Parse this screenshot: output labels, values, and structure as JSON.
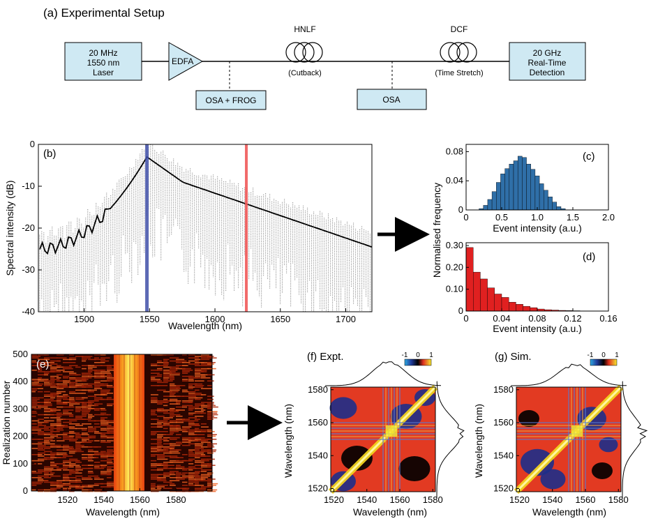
{
  "setup": {
    "title": "(a) Experimental Setup",
    "laser": [
      "20 MHz",
      "1550 nm",
      "Laser"
    ],
    "edfa": "EDFA",
    "hnlf": "HNLF",
    "cutback": "(Cutback)",
    "dcf": "DCF",
    "time_stretch": "(Time Stretch)",
    "detection": [
      "20 GHz",
      "Real-Time",
      "Detection"
    ],
    "osa_frog": "OSA + FROG",
    "osa": "OSA",
    "colors": {
      "box_fill": "#cfe9f3",
      "line": "#000000"
    }
  },
  "panel_b": {
    "label": "(b)",
    "xlabel": "Wavelength (nm)",
    "ylabel": "Spectral intensity (dB)",
    "xticks": [
      1500,
      1550,
      1600,
      1650,
      1700
    ],
    "yticks": [
      0,
      -10,
      -20,
      -30,
      -40
    ],
    "xlim": [
      1465,
      1720
    ],
    "ylim": [
      -40,
      0
    ],
    "blue_marker_nm": 1548,
    "red_marker_nm": 1624,
    "colors": {
      "blue": "#3f4fa8",
      "red": "#f05a5a",
      "mean": "#000000"
    }
  },
  "arrow_bc": {
    "name": "arrow"
  },
  "panel_c": {
    "label": "(c)",
    "xlabel": "Event intensity (a.u.)",
    "xticks": [
      "0",
      "0.5",
      "1.0",
      "1.5",
      "2.0"
    ],
    "yticks": [
      "0",
      "0.04",
      "0.08"
    ],
    "color": "#2f6fa8"
  },
  "panel_d": {
    "label": "(d)",
    "xlabel": "Event intensity (a.u.)",
    "xticks": [
      "0",
      "0.04",
      "0.08",
      "0.12",
      "0.16"
    ],
    "yticks": [
      "0",
      "0.10",
      "0.20",
      "0.30"
    ],
    "color": "#e02020"
  },
  "shared_ylabel_cd": "Normalised frequency",
  "panel_e": {
    "label": "(e)",
    "xlabel": "Wavelength (nm)",
    "ylabel": "Realization number",
    "xticks": [
      "1520",
      "1540",
      "1560",
      "1580"
    ],
    "yticks": [
      "0",
      "100",
      "200",
      "300",
      "400",
      "500"
    ]
  },
  "panel_f": {
    "label": "(f) Expt.",
    "xlabel": "Wavelength (nm)",
    "ylabel": "Wavelength (nm)",
    "ticks": [
      "1520",
      "1540",
      "1560",
      "1580"
    ],
    "colorbar": [
      "-1",
      "0",
      "1"
    ]
  },
  "panel_g": {
    "label": "(g) Sim.",
    "xlabel": "Wavelength (nm)",
    "ylabel": "Wavelength (nm)",
    "ticks": [
      "1520",
      "1540",
      "1560",
      "1580"
    ],
    "colorbar": [
      "-1",
      "0",
      "1"
    ]
  }
}
